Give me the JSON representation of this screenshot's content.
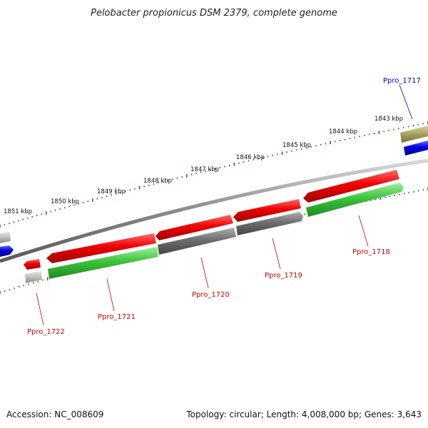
{
  "title": "Pelobacter propionicus DSM 2379, complete genome",
  "footer": {
    "accession": "Accession: NC_008609",
    "summary": "Topology: circular; Length: 4,008,000 bp; Genes: 3,643"
  },
  "scale_labels": [
    "1843 kbp",
    "1844 kbp",
    "1845 kbp",
    "1846 kbp",
    "1847 kbp",
    "1848 kbp",
    "1849 kbp",
    "1850 kbp",
    "1851 kbp"
  ],
  "gene_labels": [
    {
      "text": "Ppro_1717",
      "color": "#0000cc"
    },
    {
      "text": "Ppro_1718",
      "color": "#cc0000"
    },
    {
      "text": "Ppro_1719",
      "color": "#cc0000"
    },
    {
      "text": "Ppro_1720",
      "color": "#cc0000"
    },
    {
      "text": "Ppro_1721",
      "color": "#cc0000"
    },
    {
      "text": "Ppro_1722",
      "color": "#cc0000"
    }
  ],
  "feature_colors": {
    "cds_red": "#e80000",
    "cds_green": "#3cc43c",
    "cds_gray": "#6e6e6e",
    "cds_blue": "#0000e0",
    "cds_olive": "#a8a060",
    "backbone": "#808080",
    "tick": "#1a7a1a"
  }
}
